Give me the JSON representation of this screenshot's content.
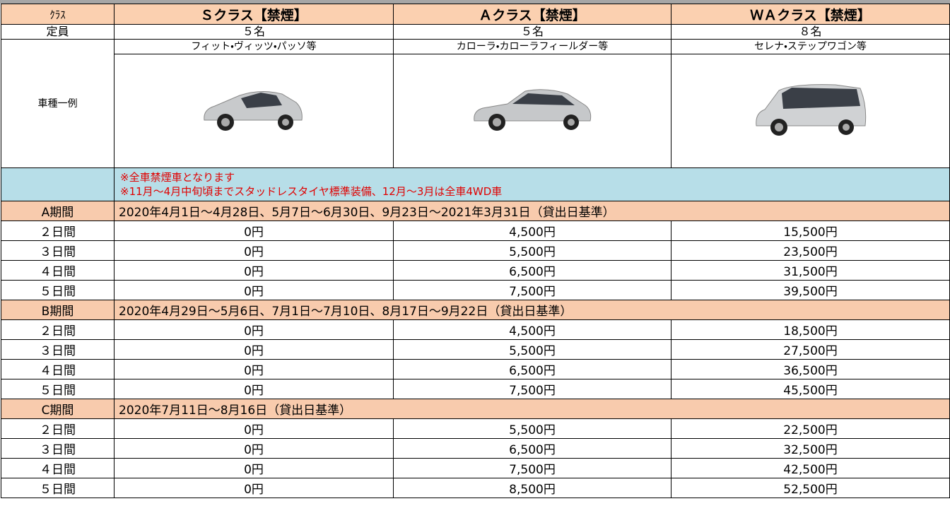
{
  "header": {
    "cells": [
      "ｸﾗｽ",
      "Ｓクラス【禁煙】",
      "Ａクラス【禁煙】",
      "ＷＡクラス【禁煙】"
    ]
  },
  "capacity": {
    "label": "定員",
    "values": [
      "５名",
      "５名",
      "８名"
    ]
  },
  "models": {
    "label": "車種一例",
    "names": [
      "フィット・ヴィッツ・パッソ等",
      "カローラ・カローラフィールダー等",
      "セレナ・ステップワゴン等"
    ]
  },
  "notes": [
    "※全車禁煙車となります",
    "※11月～4月中旬頃までスタッドレスタイヤ標準装備、12月～3月は全車4WD車"
  ],
  "periods": [
    {
      "label": "A期間",
      "dates": "2020年4月1日～4月28日、5月7日～6月30日、9月23日～2021年3月31日（貸出日基準）",
      "rows": [
        [
          "２日間",
          "0円",
          "4,500円",
          "15,500円"
        ],
        [
          "３日間",
          "0円",
          "5,500円",
          "23,500円"
        ],
        [
          "４日間",
          "0円",
          "6,500円",
          "31,500円"
        ],
        [
          "５日間",
          "0円",
          "7,500円",
          "39,500円"
        ]
      ]
    },
    {
      "label": "B期間",
      "dates": "2020年4月29日～5月6日、7月1日～7月10日、8月17日～9月22日（貸出日基準）",
      "rows": [
        [
          "２日間",
          "0円",
          "4,500円",
          "18,500円"
        ],
        [
          "３日間",
          "0円",
          "5,500円",
          "27,500円"
        ],
        [
          "４日間",
          "0円",
          "6,500円",
          "36,500円"
        ],
        [
          "５日間",
          "0円",
          "7,500円",
          "45,500円"
        ]
      ]
    },
    {
      "label": "C期間",
      "dates": "2020年7月11日～8月16日（貸出日基準）",
      "rows": [
        [
          "２日間",
          "0円",
          "5,500円",
          "22,500円"
        ],
        [
          "３日間",
          "0円",
          "6,500円",
          "32,500円"
        ],
        [
          "４日間",
          "0円",
          "7,500円",
          "42,500円"
        ],
        [
          "５日間",
          "0円",
          "8,500円",
          "52,500円"
        ]
      ]
    }
  ]
}
